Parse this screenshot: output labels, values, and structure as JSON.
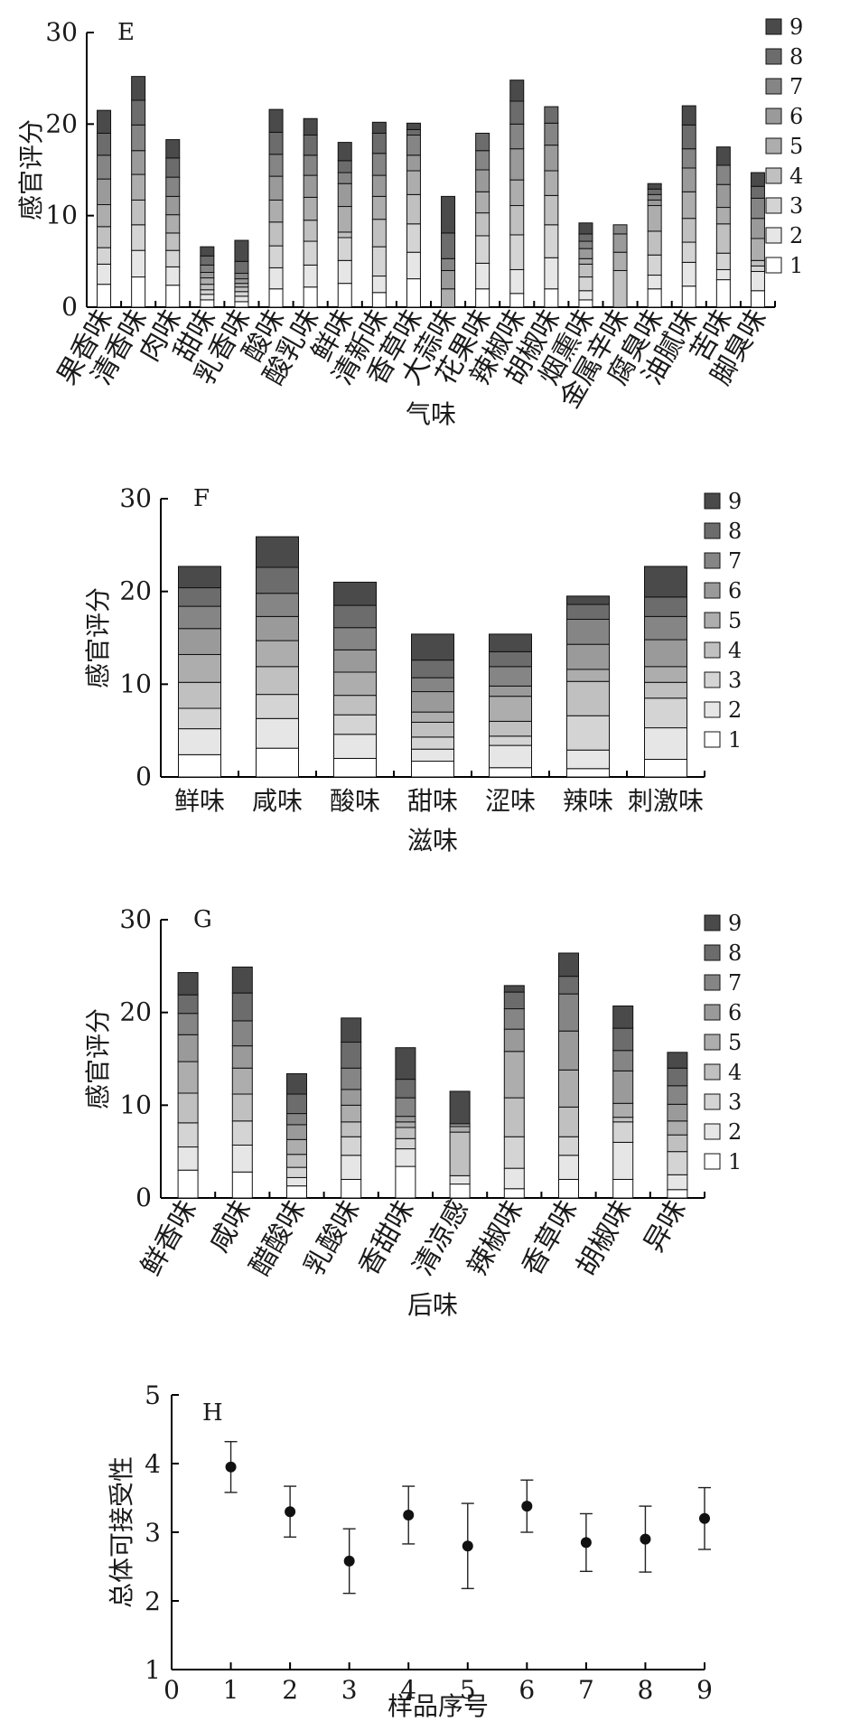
{
  "series_colors": [
    "#ffffff",
    "#e6e6e6",
    "#d4d4d4",
    "#c0c0c0",
    "#adadad",
    "#9a9a9a",
    "#858585",
    "#6c6c6c",
    "#4a4a4a"
  ],
  "legend_labels": [
    "1",
    "2",
    "3",
    "4",
    "5",
    "6",
    "7",
    "8",
    "9"
  ],
  "chart_data": [
    {
      "type": "bar",
      "panel": "E",
      "stacked": true,
      "ylabel": "感官评分",
      "xlabel": "气味",
      "ylim": [
        0,
        30
      ],
      "yticks": [
        "0",
        "10",
        "20",
        "30"
      ],
      "categories": [
        "果香味",
        "清香味",
        "肉味",
        "甜味",
        "乳香味",
        "酸味",
        "酸乳味",
        "鲜味",
        "清新味",
        "香草味",
        "大蒜味",
        "花果味",
        "辣椒味",
        "胡椒味",
        "烟熏味",
        "金属辛味",
        "腐臭味",
        "油腻味",
        "苦味",
        "脚臭味"
      ],
      "stacks": [
        [
          2.5,
          2.2,
          1.8,
          2.3,
          2.4,
          2.8,
          2.6,
          2.4,
          2.5
        ],
        [
          3.3,
          2.9,
          2.8,
          2.7,
          2.8,
          2.6,
          2.8,
          2.7,
          2.6
        ],
        [
          2.4,
          2.0,
          1.8,
          1.9,
          2.0,
          2.0,
          2.1,
          2.1,
          2.0
        ],
        [
          0.8,
          0.6,
          0.5,
          0.6,
          0.7,
          0.6,
          0.8,
          1.0,
          1.0
        ],
        [
          0.6,
          0.6,
          0.5,
          0.5,
          0.4,
          0.5,
          0.6,
          1.3,
          2.3
        ],
        [
          2.0,
          2.3,
          2.4,
          2.6,
          2.4,
          2.6,
          2.4,
          2.4,
          2.5
        ],
        [
          2.2,
          2.4,
          2.6,
          2.3,
          2.5,
          2.4,
          2.2,
          2.2,
          1.8
        ],
        [
          2.6,
          2.5,
          2.5,
          0.6,
          2.8,
          2.5,
          1.2,
          1.3,
          2.0
        ],
        [
          1.6,
          1.8,
          3.2,
          3.0,
          2.5,
          2.3,
          2.4,
          2.2,
          1.2
        ],
        [
          3.1,
          2.9,
          3.1,
          3.2,
          2.6,
          1.7,
          2.2,
          0.6,
          0.7
        ],
        [
          0,
          0,
          0,
          0,
          2.0,
          2.0,
          1.3,
          2.8,
          4.0
        ],
        [
          2.0,
          2.8,
          3.0,
          2.5,
          2.3,
          2.4,
          2.1,
          1.9,
          0.0
        ],
        [
          1.5,
          2.6,
          3.8,
          3.2,
          2.8,
          3.4,
          2.7,
          2.5,
          2.3
        ],
        [
          2.0,
          3.4,
          3.6,
          3.2,
          2.7,
          2.8,
          2.4,
          1.8,
          0.0
        ],
        [
          0.8,
          1.0,
          1.5,
          1.4,
          0.6,
          1.1,
          0.8,
          0.8,
          1.2
        ],
        [
          0.0,
          0.0,
          0.0,
          4.0,
          2.0,
          2.0,
          1.0,
          0.0,
          0.0
        ],
        [
          2.0,
          1.5,
          2.2,
          2.6,
          2.8,
          0.6,
          0.6,
          0.6,
          0.6
        ],
        [
          2.3,
          2.6,
          2.2,
          2.6,
          2.9,
          2.6,
          2.1,
          2.6,
          2.1
        ],
        [
          3.0,
          1.1,
          1.8,
          3.2,
          1.8,
          2.5,
          2.1,
          0.0,
          2.0
        ],
        [
          1.8,
          2.1,
          0.6,
          0.6,
          2.4,
          2.2,
          2.2,
          1.3,
          1.5
        ]
      ]
    },
    {
      "type": "bar",
      "panel": "F",
      "stacked": true,
      "ylabel": "感官评分",
      "xlabel": "滋味",
      "ylim": [
        0,
        30
      ],
      "yticks": [
        "0",
        "10",
        "20",
        "30"
      ],
      "categories": [
        "鲜味",
        "咸味",
        "酸味",
        "甜味",
        "涩味",
        "辣味",
        "刺激味"
      ],
      "stacks": [
        [
          2.4,
          2.8,
          2.2,
          2.8,
          3.0,
          2.8,
          2.4,
          2.0,
          2.3
        ],
        [
          3.1,
          3.2,
          2.6,
          3.0,
          2.8,
          2.6,
          2.5,
          2.8,
          3.3
        ],
        [
          2.0,
          2.6,
          2.1,
          2.1,
          2.5,
          2.4,
          2.4,
          2.4,
          2.5
        ],
        [
          1.7,
          1.3,
          1.3,
          1.6,
          1.1,
          2.2,
          1.5,
          1.9,
          2.8
        ],
        [
          1.0,
          2.4,
          1.0,
          1.6,
          2.7,
          1.1,
          2.1,
          1.6,
          1.9
        ],
        [
          0.9,
          2.0,
          3.7,
          3.7,
          1.3,
          2.7,
          2.7,
          1.6,
          0.9
        ],
        [
          1.9,
          3.4,
          3.2,
          1.7,
          1.7,
          2.9,
          2.5,
          2.1,
          3.3
        ]
      ]
    },
    {
      "type": "bar",
      "panel": "G",
      "stacked": true,
      "ylabel": "感官评分",
      "xlabel": "后味",
      "ylim": [
        0,
        30
      ],
      "yticks": [
        "0",
        "10",
        "20",
        "30"
      ],
      "categories": [
        "鲜香味",
        "咸味",
        "醋酸味",
        "乳酸味",
        "香甜味",
        "清凉感",
        "辣椒味",
        "香草味",
        "胡椒味",
        "异味"
      ],
      "stacks": [
        [
          3.0,
          2.5,
          2.6,
          3.2,
          3.4,
          2.9,
          2.3,
          2.0,
          2.4
        ],
        [
          2.8,
          2.9,
          2.6,
          2.9,
          2.8,
          2.4,
          2.7,
          3.0,
          2.8
        ],
        [
          1.3,
          0.9,
          1.1,
          1.4,
          1.6,
          1.6,
          1.2,
          2.1,
          2.2
        ],
        [
          2.0,
          2.6,
          2.0,
          1.6,
          1.8,
          1.7,
          2.3,
          2.8,
          2.6
        ],
        [
          3.4,
          1.9,
          1.1,
          1.2,
          0.6,
          0.6,
          2.0,
          2.0,
          3.4
        ],
        [
          1.5,
          0.9,
          0.0,
          4.7,
          0.6,
          0.3,
          0.0,
          0.0,
          3.5
        ],
        [
          1.0,
          2.2,
          3.4,
          4.2,
          5.0,
          2.4,
          2.2,
          1.8,
          0.7
        ],
        [
          2.0,
          2.6,
          2.0,
          3.2,
          4.0,
          4.2,
          4.0,
          1.9,
          2.5
        ],
        [
          2.0,
          4.0,
          2.2,
          0.5,
          1.5,
          3.5,
          2.2,
          2.4,
          2.4
        ],
        [
          0.9,
          1.6,
          2.5,
          1.8,
          1.5,
          1.8,
          2.0,
          1.9,
          1.7
        ]
      ]
    },
    {
      "type": "scatter",
      "panel": "H",
      "ylabel": "总体可接受性",
      "xlabel": "样品序号",
      "xlim": [
        0,
        9
      ],
      "ylim": [
        1,
        5
      ],
      "xticks": [
        "0",
        "1",
        "2",
        "3",
        "4",
        "5",
        "6",
        "7",
        "8",
        "9"
      ],
      "yticks": [
        "1",
        "2",
        "3",
        "4",
        "5"
      ],
      "x": [
        1,
        2,
        3,
        4,
        5,
        6,
        7,
        8,
        9
      ],
      "y": [
        3.95,
        3.3,
        2.58,
        3.25,
        2.8,
        3.38,
        2.85,
        2.9,
        3.2
      ],
      "err": [
        0.37,
        0.37,
        0.47,
        0.42,
        0.62,
        0.38,
        0.42,
        0.48,
        0.45
      ]
    }
  ]
}
